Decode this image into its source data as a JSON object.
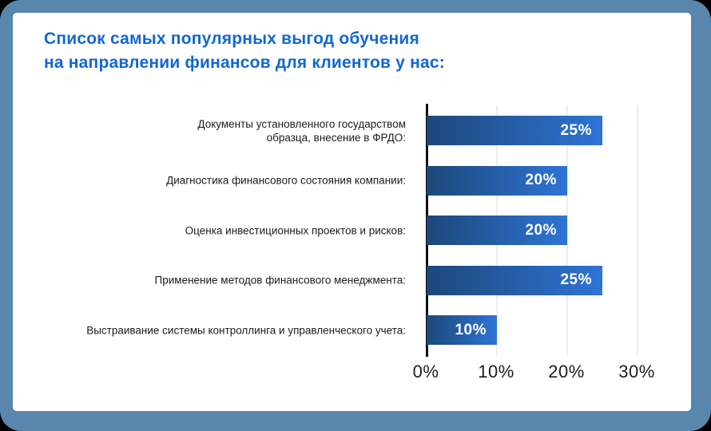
{
  "frame": {
    "background_color": "#5886ac",
    "card_background_color": "#ffffff"
  },
  "chart_data": {
    "type": "bar",
    "orientation": "horizontal",
    "title_line1": "Список самых популярных выгод обучения",
    "title_line2": "на направлении финансов для клиентов у нас:",
    "title_color": "#1267d2",
    "categories": [
      "Документы установленного государством\nобразца, внесение в ФРДО:",
      "Диагностика финансового состояния компании:",
      "Оценка инвестиционных проектов и рисков:",
      "Применение методов финансового менеджмента:",
      "Выстраивание системы контроллинга и управленческого учета:"
    ],
    "values": [
      25,
      20,
      20,
      25,
      10
    ],
    "value_labels": [
      "25%",
      "20%",
      "20%",
      "25%",
      "10%"
    ],
    "x_ticks": [
      "0%",
      "10%",
      "20%",
      "30%"
    ],
    "xlim": [
      0,
      30
    ],
    "grid": true,
    "legend": "none",
    "bar_color_start": "#1c4879",
    "bar_color_end": "#2e74d6",
    "axis_color": "#111111",
    "gridline_color": "#ededed",
    "value_label_color": "#ffffff"
  }
}
